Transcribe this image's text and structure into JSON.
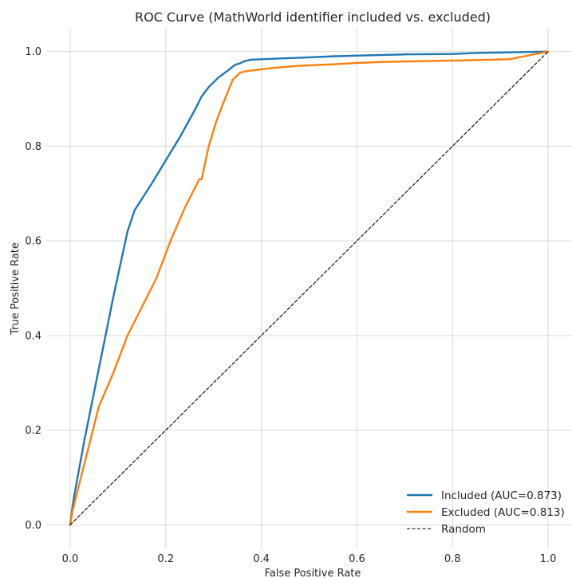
{
  "chart_data": {
    "type": "line",
    "title": "ROC Curve (MathWorld identifier included vs. excluded)",
    "xlabel": "False Positive Rate",
    "ylabel": "True Positive Rate",
    "xlim": [
      -0.05,
      1.05
    ],
    "ylim": [
      -0.05,
      1.05
    ],
    "xticks": [
      0.0,
      0.2,
      0.4,
      0.6,
      0.8,
      1.0
    ],
    "yticks": [
      0.0,
      0.2,
      0.4,
      0.6,
      0.8,
      1.0
    ],
    "xtick_labels": [
      "0.0",
      "0.2",
      "0.4",
      "0.6",
      "0.8",
      "1.0"
    ],
    "ytick_labels": [
      "0.0",
      "0.2",
      "0.4",
      "0.6",
      "0.8",
      "1.0"
    ],
    "grid": true,
    "legend_position": "bottom-right",
    "series": [
      {
        "name": "Included (AUC=0.873)",
        "color": "#1f77b4",
        "style": "solid",
        "x": [
          0.0,
          0.005,
          0.01,
          0.03,
          0.06,
          0.09,
          0.12,
          0.135,
          0.17,
          0.2,
          0.23,
          0.26,
          0.275,
          0.29,
          0.31,
          0.33,
          0.345,
          0.355,
          0.365,
          0.38,
          0.43,
          0.48,
          0.55,
          0.62,
          0.7,
          0.8,
          0.85,
          0.9,
          0.95,
          1.0
        ],
        "y": [
          0.0,
          0.04,
          0.07,
          0.18,
          0.33,
          0.48,
          0.62,
          0.665,
          0.72,
          0.77,
          0.82,
          0.875,
          0.905,
          0.925,
          0.945,
          0.96,
          0.972,
          0.975,
          0.98,
          0.983,
          0.985,
          0.987,
          0.99,
          0.992,
          0.994,
          0.995,
          0.997,
          0.998,
          0.999,
          1.0
        ]
      },
      {
        "name": "Excluded (AUC=0.813)",
        "color": "#ff7f0e",
        "style": "solid",
        "x": [
          0.0,
          0.005,
          0.01,
          0.03,
          0.06,
          0.09,
          0.12,
          0.15,
          0.18,
          0.21,
          0.24,
          0.27,
          0.275,
          0.29,
          0.305,
          0.32,
          0.34,
          0.355,
          0.365,
          0.38,
          0.42,
          0.48,
          0.55,
          0.6,
          0.65,
          0.75,
          0.85,
          0.92,
          0.95,
          1.0
        ],
        "y": [
          0.0,
          0.03,
          0.05,
          0.13,
          0.25,
          0.32,
          0.4,
          0.46,
          0.52,
          0.6,
          0.67,
          0.73,
          0.73,
          0.8,
          0.85,
          0.89,
          0.94,
          0.955,
          0.958,
          0.96,
          0.965,
          0.97,
          0.973,
          0.976,
          0.978,
          0.98,
          0.982,
          0.984,
          0.99,
          1.0
        ]
      },
      {
        "name": "Random",
        "color": "#000000",
        "style": "dashed",
        "x": [
          0.0,
          1.0
        ],
        "y": [
          0.0,
          1.0
        ]
      }
    ]
  }
}
